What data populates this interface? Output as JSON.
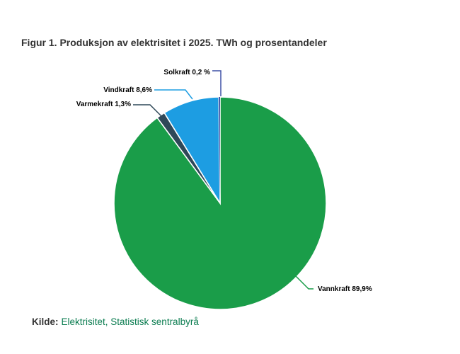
{
  "title": "Figur 1. Produksjon av elektrisitet i 2025. TWh og prosentandeler",
  "colors": {
    "background": "#ffffff",
    "title_text": "#333333",
    "label_text": "#000000",
    "slice_border": "#ffffff"
  },
  "source": {
    "prefix": "Kilde:",
    "text": "Elektrisitet, Statistisk sentralbyrå",
    "link_color": "#0c7d51"
  },
  "chart_data": {
    "type": "pie",
    "title": "Figur 1. Produksjon av elektrisitet i 2025. TWh og prosentandeler",
    "unit": "prosentandeler (%)",
    "start_angle_deg": 0,
    "direction": "clockwise",
    "legend": "none",
    "label_style": "callout",
    "slices": [
      {
        "label": "Vannkraft",
        "value_pct": 89.9,
        "display": "Vannkraft 89,9%",
        "color": "#1a9d49"
      },
      {
        "label": "Varmekraft",
        "value_pct": 1.3,
        "display": "Varmekraft 1,3%",
        "color": "#2f4858"
      },
      {
        "label": "Vindkraft",
        "value_pct": 8.6,
        "display": "Vindkraft 8,6%",
        "color": "#1d9de2"
      },
      {
        "label": "Solkraft",
        "value_pct": 0.2,
        "display": "Solkraft 0,2 %",
        "color": "#3f51a5"
      }
    ]
  }
}
